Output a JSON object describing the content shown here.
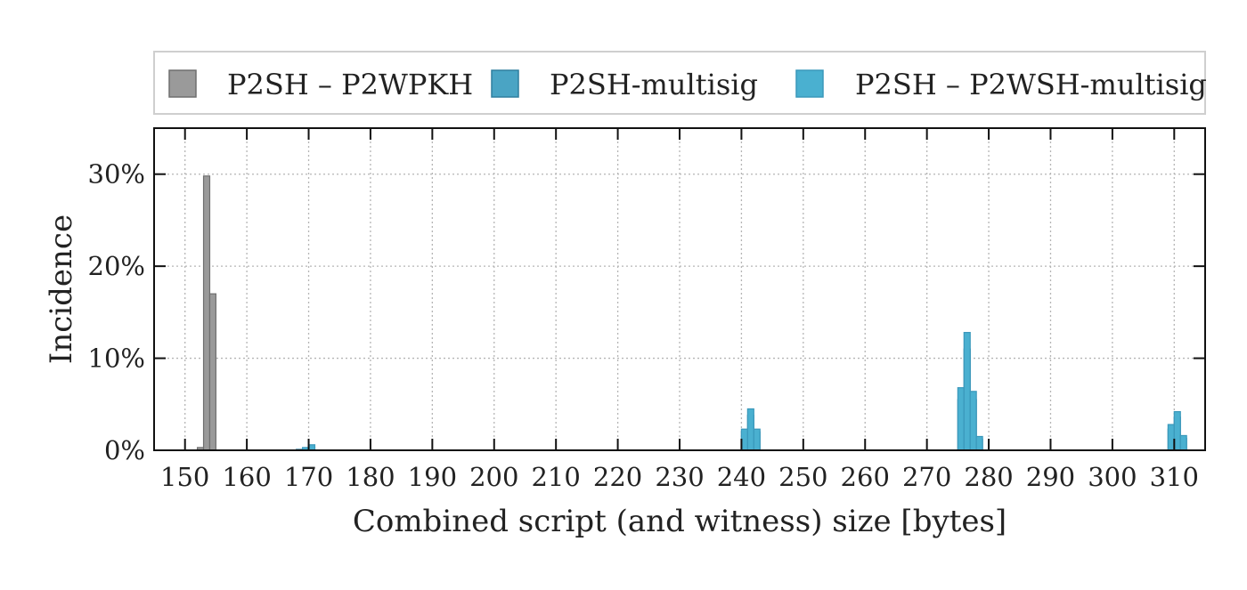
{
  "chart_data": {
    "type": "bar",
    "xlabel": "Combined script (and witness) size [bytes]",
    "ylabel": "Incidence",
    "xlim": [
      145,
      315
    ],
    "ylim": [
      0,
      35
    ],
    "x_ticks": [
      150,
      160,
      170,
      180,
      190,
      200,
      210,
      220,
      230,
      240,
      250,
      260,
      270,
      280,
      290,
      300,
      310
    ],
    "y_ticks": [
      0,
      10,
      20,
      30
    ],
    "y_tick_labels": [
      "0%",
      "10%",
      "20%",
      "30%"
    ],
    "bin_width": 1,
    "grid": true,
    "legend_position": "top",
    "series": [
      {
        "name": "P2SH – P2WPKH",
        "color": "#9a9a9a",
        "edge_color": "#6f6f6f",
        "x": [
          152,
          153,
          154
        ],
        "values": [
          0.3,
          29.8,
          17.0
        ]
      },
      {
        "name": "P2SH-multisig",
        "color": "#4aa4c4",
        "edge_color": "#2f7f9f",
        "x": [
          168,
          169,
          170,
          240,
          241,
          242,
          275,
          276,
          277,
          278,
          309,
          310,
          311
        ],
        "values": [
          0.1,
          0.2,
          0.3,
          2.0,
          3.8,
          2.0,
          5.5,
          11.0,
          5.5,
          1.2,
          2.3,
          3.6,
          1.3
        ]
      },
      {
        "name": "P2SH – P2WSH-multisig",
        "color": "#4ab0d0",
        "edge_color": "#3a98bb",
        "x": [
          169,
          170,
          240,
          241,
          242,
          275,
          276,
          277,
          278,
          309,
          310,
          311
        ],
        "values": [
          0.3,
          0.6,
          2.3,
          4.5,
          2.3,
          6.8,
          12.8,
          6.4,
          1.5,
          2.8,
          4.2,
          1.6
        ]
      }
    ]
  }
}
